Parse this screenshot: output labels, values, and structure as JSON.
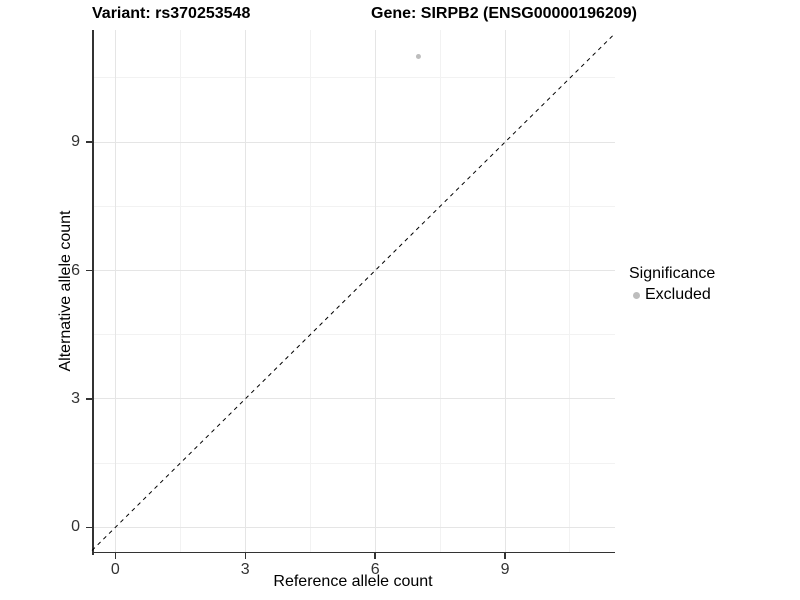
{
  "titles": {
    "variant": "Variant: rs370253548",
    "gene": "Gene: SIRPB2 (ENSG00000196209)"
  },
  "chart_data": {
    "type": "scatter",
    "title_left": "Variant: rs370253548",
    "title_right": "Gene: SIRPB2 (ENSG00000196209)",
    "xlabel": "Reference allele count",
    "ylabel": "Alternative allele count",
    "xlim": [
      -0.54,
      11.54
    ],
    "ylim": [
      -0.6,
      11.62
    ],
    "x_ticks": [
      0,
      3,
      6,
      9
    ],
    "y_ticks": [
      0,
      3,
      6,
      9
    ],
    "x_minor_ticks": [
      1.5,
      4.5,
      7.5,
      10.5
    ],
    "y_minor_ticks": [
      1.5,
      4.5,
      7.5,
      10.5
    ],
    "grid": true,
    "legend_position": "right",
    "legend": {
      "title": "Significance",
      "items": [
        {
          "label": "Excluded",
          "color": "#bdbdbd"
        }
      ]
    },
    "series": [
      {
        "name": "Excluded",
        "color": "#bdbdbd",
        "point_radius": 2.5,
        "points": [
          {
            "x": 7,
            "y": 11
          }
        ]
      }
    ],
    "reference_line": {
      "type": "identity",
      "equation": "y = x",
      "style": "dashed",
      "color": "#000000",
      "dash": [
        4,
        4
      ]
    },
    "colors": {
      "major_grid": "#e5e5e5",
      "minor_grid": "#f2f2f2",
      "axis": "#333333",
      "tick_label": "#333333",
      "background": "#ffffff"
    }
  }
}
